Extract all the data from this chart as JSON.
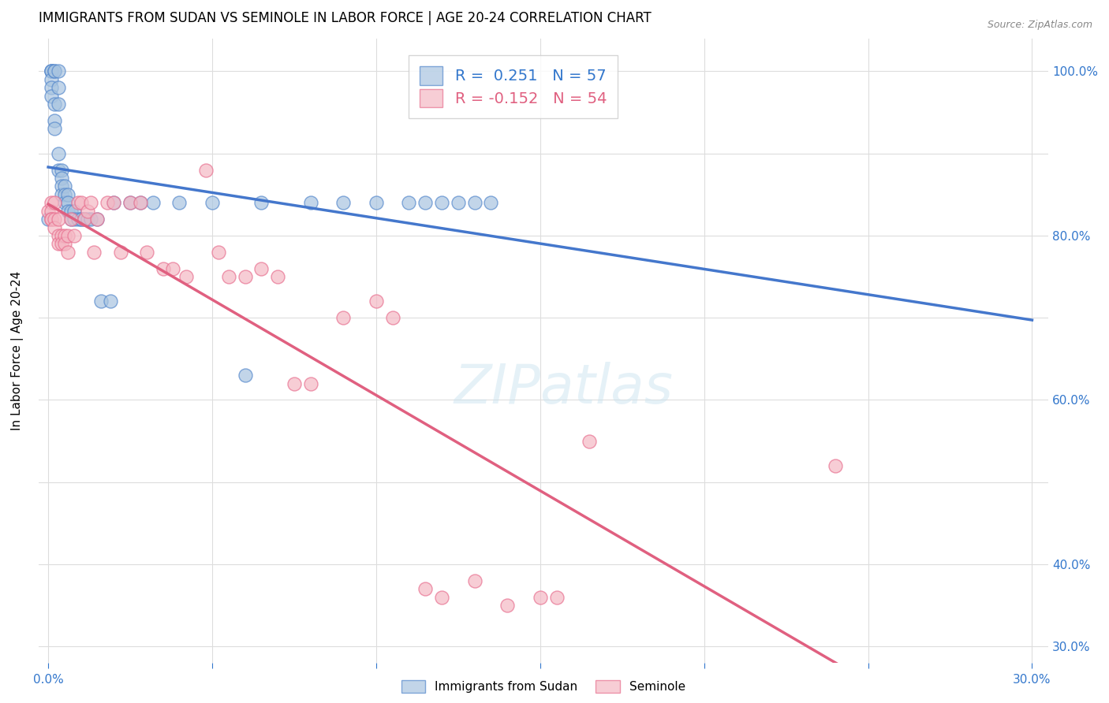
{
  "title": "IMMIGRANTS FROM SUDAN VS SEMINOLE IN LABOR FORCE | AGE 20-24 CORRELATION CHART",
  "source": "Source: ZipAtlas.com",
  "ylabel": "In Labor Force | Age 20-24",
  "xlim": [
    -0.003,
    0.305
  ],
  "ylim": [
    0.28,
    1.04
  ],
  "sudan_color": "#a8c4e0",
  "seminole_color": "#f4b8c4",
  "sudan_edge_color": "#5588cc",
  "seminole_edge_color": "#e87090",
  "sudan_line_color": "#4477cc",
  "seminole_line_color": "#e06080",
  "legend_R_sudan": " 0.251",
  "legend_N_sudan": "57",
  "legend_R_seminole": "-0.152",
  "legend_N_seminole": "54",
  "sudan_x": [
    0.0,
    0.001,
    0.001,
    0.001,
    0.001,
    0.001,
    0.001,
    0.002,
    0.002,
    0.002,
    0.002,
    0.002,
    0.003,
    0.003,
    0.003,
    0.003,
    0.003,
    0.004,
    0.004,
    0.004,
    0.004,
    0.005,
    0.005,
    0.005,
    0.006,
    0.006,
    0.006,
    0.007,
    0.007,
    0.008,
    0.008,
    0.009,
    0.01,
    0.01,
    0.011,
    0.012,
    0.013,
    0.015,
    0.016,
    0.019,
    0.02,
    0.025,
    0.028,
    0.032,
    0.04,
    0.05,
    0.06,
    0.065,
    0.08,
    0.09,
    0.1,
    0.11,
    0.115,
    0.12,
    0.125,
    0.13,
    0.135
  ],
  "sudan_y": [
    0.82,
    1.0,
    1.0,
    1.0,
    0.99,
    0.98,
    0.97,
    1.0,
    1.0,
    0.96,
    0.94,
    0.93,
    1.0,
    0.98,
    0.96,
    0.9,
    0.88,
    0.88,
    0.87,
    0.86,
    0.85,
    0.86,
    0.85,
    0.84,
    0.85,
    0.84,
    0.83,
    0.83,
    0.82,
    0.83,
    0.82,
    0.82,
    0.82,
    0.82,
    0.82,
    0.82,
    0.82,
    0.82,
    0.72,
    0.72,
    0.84,
    0.84,
    0.84,
    0.84,
    0.84,
    0.84,
    0.63,
    0.84,
    0.84,
    0.84,
    0.84,
    0.84,
    0.84,
    0.84,
    0.84,
    0.84,
    0.84
  ],
  "seminole_x": [
    0.0,
    0.001,
    0.001,
    0.001,
    0.001,
    0.002,
    0.002,
    0.002,
    0.003,
    0.003,
    0.003,
    0.004,
    0.004,
    0.005,
    0.005,
    0.006,
    0.006,
    0.007,
    0.008,
    0.009,
    0.01,
    0.011,
    0.012,
    0.013,
    0.014,
    0.015,
    0.018,
    0.02,
    0.022,
    0.025,
    0.028,
    0.03,
    0.035,
    0.038,
    0.042,
    0.048,
    0.052,
    0.055,
    0.06,
    0.065,
    0.07,
    0.075,
    0.08,
    0.09,
    0.1,
    0.105,
    0.115,
    0.12,
    0.13,
    0.14,
    0.15,
    0.155,
    0.165,
    0.24
  ],
  "seminole_y": [
    0.83,
    0.84,
    0.83,
    0.82,
    0.82,
    0.84,
    0.82,
    0.81,
    0.82,
    0.8,
    0.79,
    0.8,
    0.79,
    0.8,
    0.79,
    0.8,
    0.78,
    0.82,
    0.8,
    0.84,
    0.84,
    0.82,
    0.83,
    0.84,
    0.78,
    0.82,
    0.84,
    0.84,
    0.78,
    0.84,
    0.84,
    0.78,
    0.76,
    0.76,
    0.75,
    0.88,
    0.78,
    0.75,
    0.75,
    0.76,
    0.75,
    0.62,
    0.62,
    0.7,
    0.72,
    0.7,
    0.37,
    0.36,
    0.38,
    0.35,
    0.36,
    0.36,
    0.55,
    0.52
  ]
}
